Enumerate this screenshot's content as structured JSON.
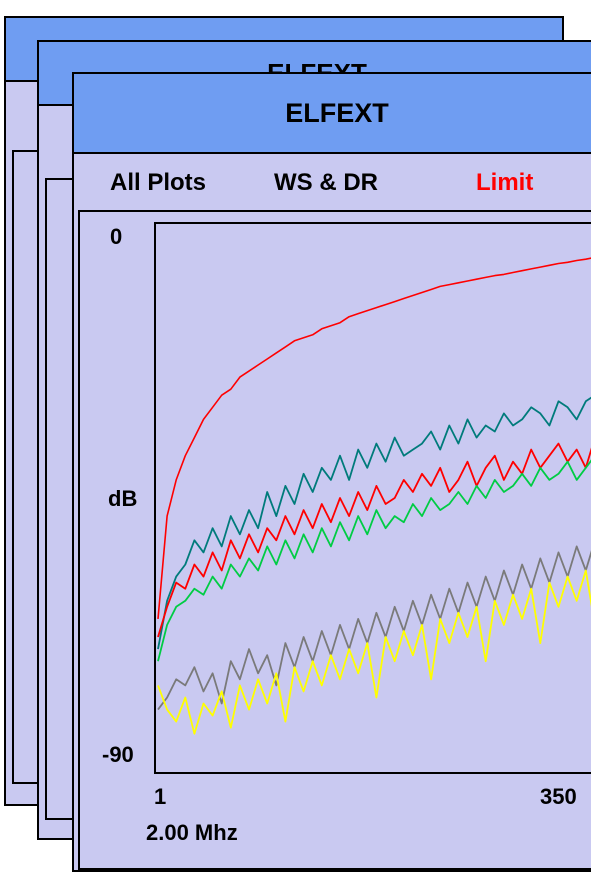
{
  "window": {
    "title": "ELFEXT"
  },
  "tabs": [
    {
      "label": "All Plots",
      "color": "#000000"
    },
    {
      "label": "WS & DR",
      "color": "#000000"
    },
    {
      "label": "Limit",
      "color": "#ff0000"
    }
  ],
  "readout": {
    "frequency": "2.00 Mhz"
  },
  "chart_data": {
    "type": "line",
    "y_tick_top": "0",
    "y_tick_mid": "dB",
    "y_tick_bottom": "-90",
    "x_tick_left": "1",
    "x_tick_right": "350",
    "xlim": [
      1,
      350
    ],
    "ylim": [
      -90,
      0
    ],
    "grid": false,
    "series": [
      {
        "color": "#ff0000",
        "values": [
          -65,
          -48,
          -42,
          -38,
          -35,
          -32,
          -30,
          -28,
          -27,
          -25,
          -24,
          -23,
          -22,
          -21,
          -20,
          -19,
          -18.5,
          -18,
          -17,
          -16.5,
          -16,
          -15,
          -14.5,
          -14,
          -13.5,
          -13,
          -12.5,
          -12,
          -11.5,
          -11,
          -10.5,
          -10,
          -9.7,
          -9.4,
          -9.1,
          -8.8,
          -8.5,
          -8.2,
          -8,
          -7.7,
          -7.4,
          -7.1,
          -6.8,
          -6.5,
          -6.2,
          -6,
          -5.7,
          -5.5,
          -5.2,
          -5
        ]
      },
      {
        "color": "#007b7b",
        "values": [
          -70,
          -62,
          -58,
          -56,
          -52,
          -54,
          -50,
          -53,
          -48,
          -51,
          -47,
          -50,
          -44,
          -48,
          -43,
          -46,
          -41,
          -44,
          -40,
          -42,
          -38,
          -42,
          -37,
          -40,
          -36,
          -39,
          -35,
          -38,
          -37,
          -36,
          -34,
          -37,
          -33,
          -36,
          -32,
          -35,
          -33,
          -34,
          -31,
          -33,
          -32,
          -30,
          -31,
          -33,
          -29,
          -30,
          -32,
          -29,
          -28,
          -30
        ]
      },
      {
        "color": "#ff0000",
        "values": [
          -68,
          -63,
          -59,
          -60,
          -56,
          -58,
          -54,
          -57,
          -52,
          -55,
          -51,
          -54,
          -50,
          -52,
          -48,
          -51,
          -47,
          -50,
          -46,
          -49,
          -45,
          -48,
          -44,
          -47,
          -43,
          -46,
          -45,
          -42,
          -44,
          -41,
          -43,
          -40,
          -44,
          -42,
          -39,
          -43,
          -40,
          -38,
          -42,
          -39,
          -41,
          -37,
          -40,
          -38,
          -36,
          -39,
          -37,
          -40,
          -35,
          -38
        ]
      },
      {
        "color": "#00cc44",
        "values": [
          -72,
          -66,
          -63,
          -62,
          -60,
          -61,
          -58,
          -60,
          -56,
          -58,
          -55,
          -57,
          -53,
          -56,
          -52,
          -55,
          -51,
          -54,
          -50,
          -53,
          -49,
          -52,
          -48,
          -51,
          -47,
          -50,
          -48,
          -49,
          -46,
          -48,
          -45,
          -47,
          -46,
          -44,
          -46,
          -43,
          -45,
          -42,
          -44,
          -43,
          -41,
          -43,
          -40,
          -42,
          -41,
          -39,
          -42,
          -40,
          -38,
          -41
        ]
      },
      {
        "color": "#7a7a7a",
        "values": [
          -80,
          -78,
          -75,
          -76,
          -73,
          -77,
          -74,
          -79,
          -72,
          -75,
          -70,
          -74,
          -71,
          -76,
          -69,
          -73,
          -68,
          -72,
          -67,
          -71,
          -66,
          -70,
          -65,
          -69,
          -64,
          -68,
          -63,
          -67,
          -62,
          -66,
          -61,
          -65,
          -60,
          -64,
          -59,
          -63,
          -58,
          -62,
          -57,
          -61,
          -56,
          -60,
          -55,
          -59,
          -54,
          -58,
          -53,
          -57,
          -52,
          -56
        ]
      },
      {
        "color": "#ffff00",
        "values": [
          -76,
          -80,
          -82,
          -78,
          -84,
          -79,
          -81,
          -77,
          -83,
          -76,
          -80,
          -75,
          -79,
          -74,
          -82,
          -73,
          -77,
          -72,
          -76,
          -71,
          -75,
          -70,
          -74,
          -69,
          -78,
          -68,
          -72,
          -67,
          -71,
          -66,
          -75,
          -65,
          -69,
          -64,
          -68,
          -63,
          -72,
          -62,
          -66,
          -61,
          -65,
          -60,
          -69,
          -59,
          -63,
          -58,
          -62,
          -57,
          -66,
          -60
        ]
      }
    ]
  }
}
